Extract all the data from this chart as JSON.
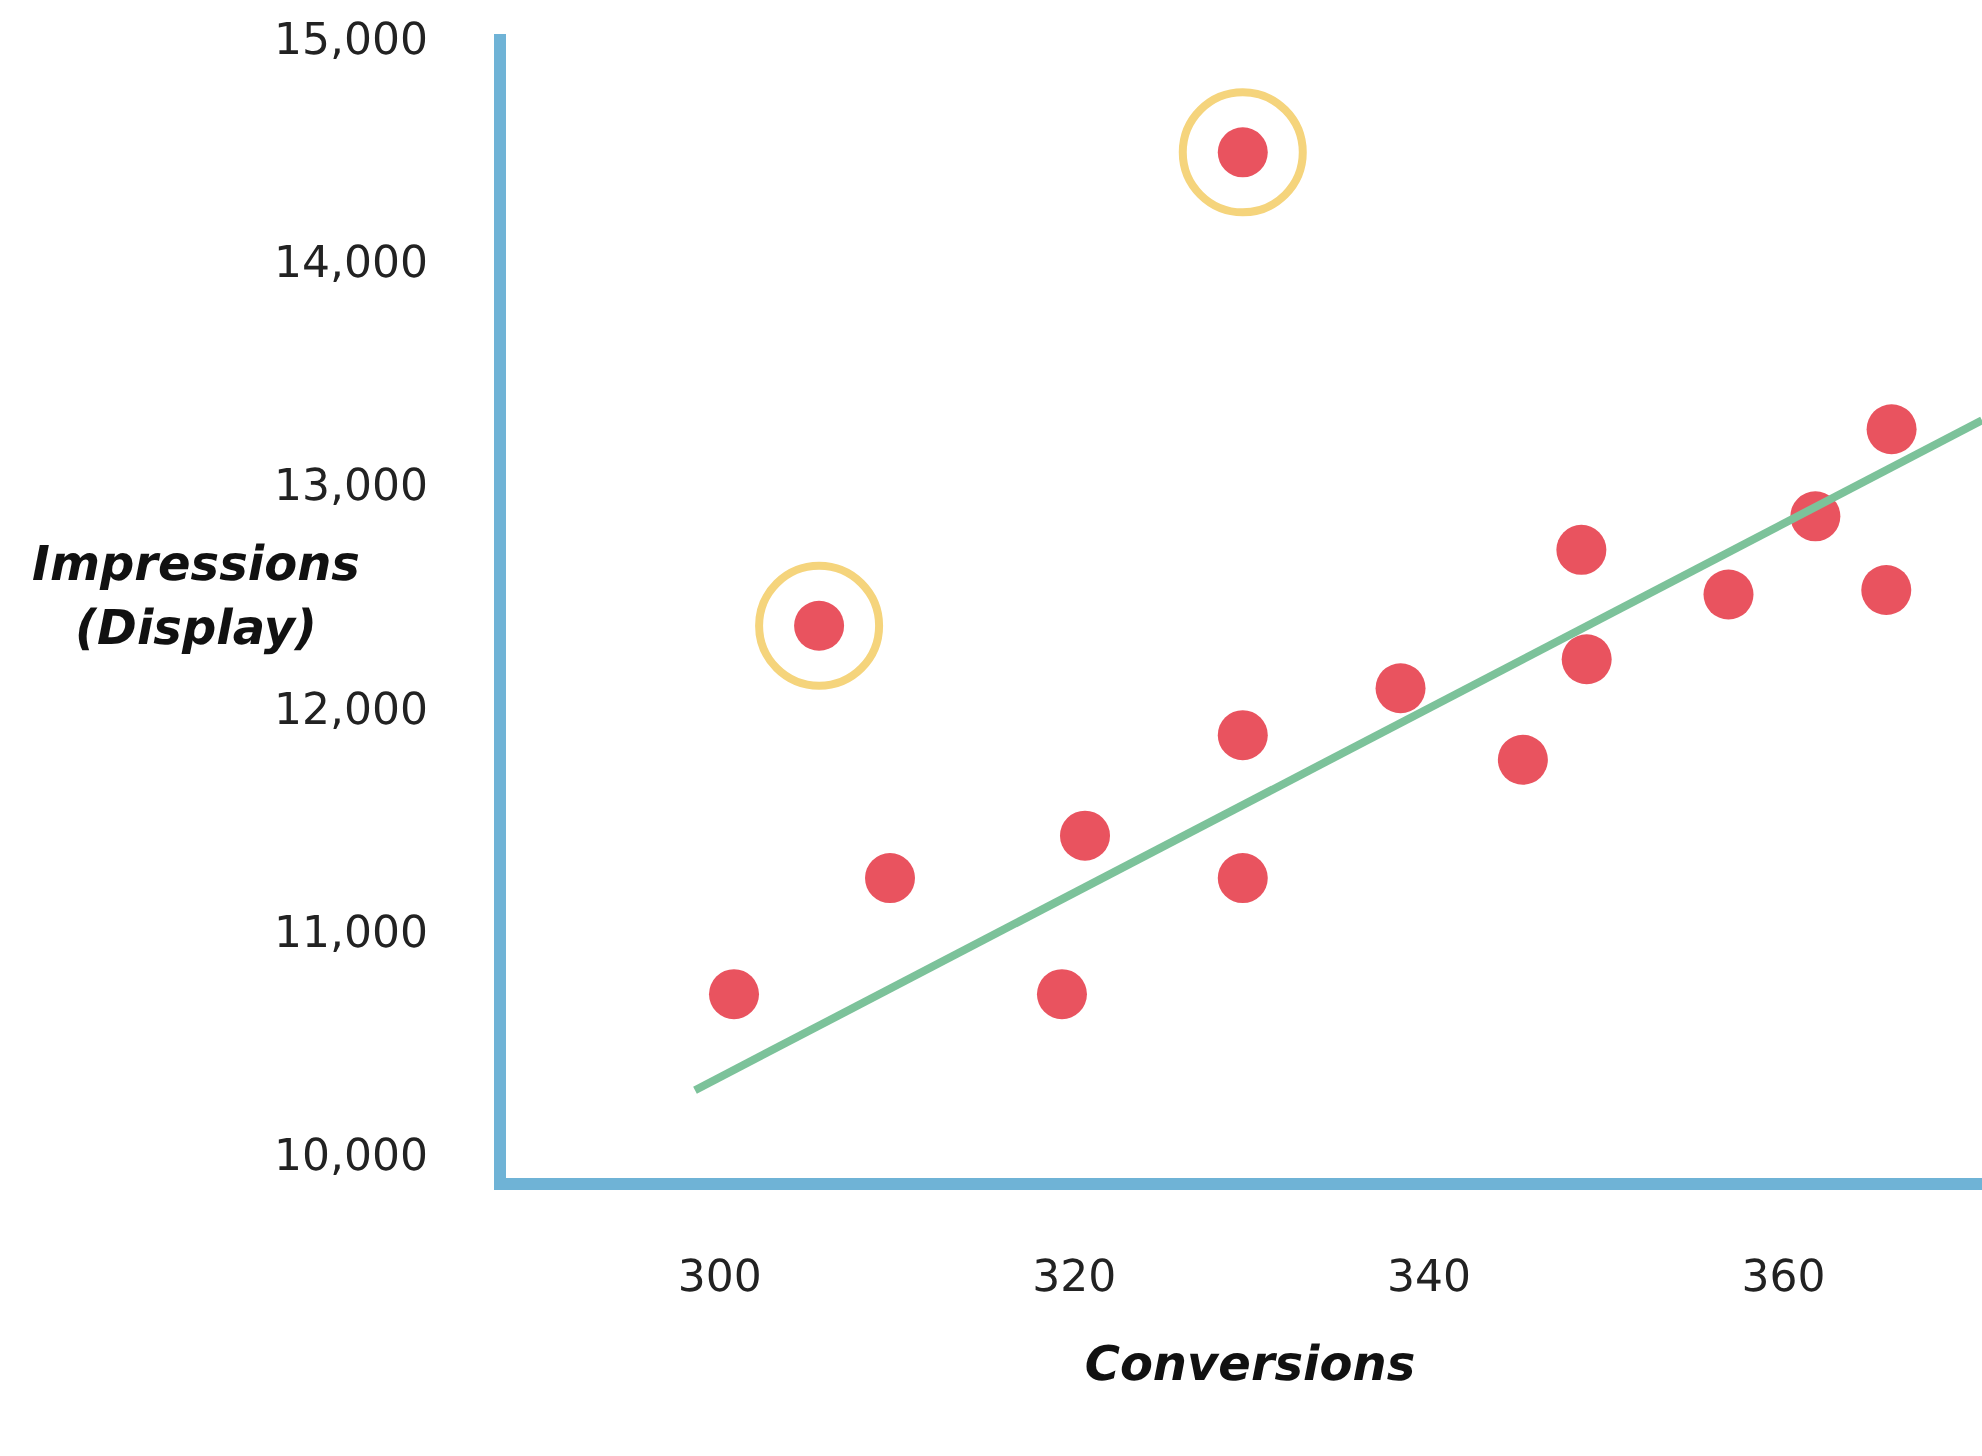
{
  "chart_data": {
    "type": "scatter",
    "xlabel": "Conversions",
    "ylabel": "Impressions (Display)",
    "xlim": [
      287.6,
      371.2
    ],
    "ylim": [
      9870,
      15020
    ],
    "xticks": [
      300,
      320,
      340,
      360
    ],
    "yticks": [
      {
        "value": 10000,
        "label": "10,000"
      },
      {
        "value": 11000,
        "label": "11,000"
      },
      {
        "value": 12000,
        "label": "12,000"
      },
      {
        "value": 13000,
        "label": "13,000"
      },
      {
        "value": 14000,
        "label": "14,000"
      },
      {
        "value": 15000,
        "label": "15,000"
      }
    ],
    "grid": false,
    "series": [
      {
        "color": "#e9535f",
        "marker": "circle",
        "x": [
          300.8,
          305.6,
          309.6,
          319.3,
          320.6,
          329.5,
          329.5,
          329.5,
          338.4,
          345.3,
          348.6,
          348.9,
          356.9,
          361.8,
          365.8,
          366.1
        ],
        "values": [
          10720,
          12370,
          11240,
          10720,
          11430,
          14490,
          11880,
          11240,
          12090,
          11770,
          12710,
          12220,
          12510,
          12860,
          12530,
          13250
        ]
      },
      {
        "type": "line",
        "color": "#7cc29a",
        "x": [
          298.6,
          371.2
        ],
        "values": [
          10290,
          13290
        ],
        "line_style": "solid",
        "marker": "none"
      },
      {
        "type": "scatter",
        "color": "#f5d47c",
        "x": [
          305.6,
          329.5
        ],
        "values": [
          12370,
          14490
        ],
        "marker": "circle"
      }
    ]
  }
}
